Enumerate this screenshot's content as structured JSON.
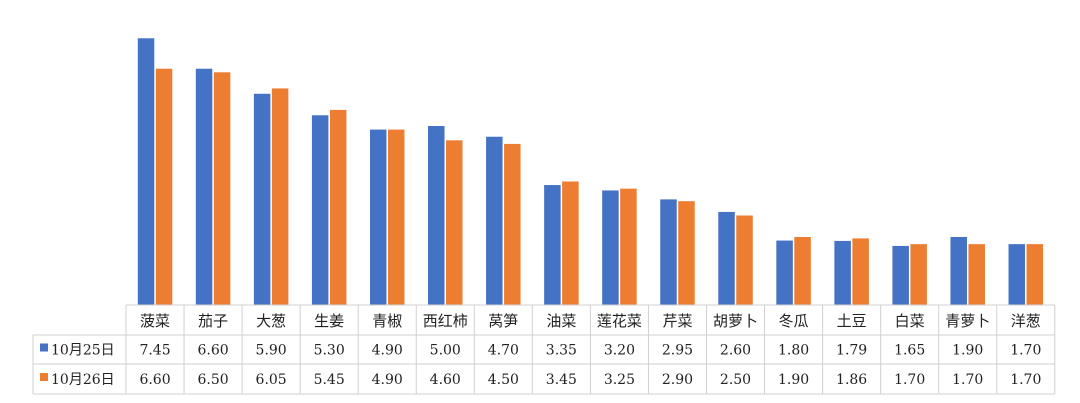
{
  "chart_data": {
    "type": "bar",
    "title": "",
    "xlabel": "",
    "ylabel": "",
    "ylim": [
      0,
      8
    ],
    "grid": false,
    "legend": "table-left",
    "categories": [
      "菠菜",
      "茄子",
      "大葱",
      "生姜",
      "青椒",
      "西红柿",
      "莴笋",
      "油菜",
      "莲花菜",
      "芹菜",
      "胡萝卜",
      "冬瓜",
      "土豆",
      "白菜",
      "青萝卜",
      "洋葱"
    ],
    "series": [
      {
        "name": "10月25日",
        "color": "#4472C4",
        "values": [
          7.45,
          6.6,
          5.9,
          5.3,
          4.9,
          5.0,
          4.7,
          3.35,
          3.2,
          2.95,
          2.6,
          1.8,
          1.79,
          1.65,
          1.9,
          1.7
        ],
        "labels": [
          "7.45",
          "6.60",
          "5.90",
          "5.30",
          "4.90",
          "5.00",
          "4.70",
          "3.35",
          "3.20",
          "2.95",
          "2.60",
          "1.80",
          "1.79",
          "1.65",
          "1.90",
          "1.70"
        ]
      },
      {
        "name": "10月26日",
        "color": "#ED7D31",
        "values": [
          6.6,
          6.5,
          6.05,
          5.45,
          4.9,
          4.6,
          4.5,
          3.45,
          3.25,
          2.9,
          2.5,
          1.9,
          1.86,
          1.7,
          1.7,
          1.7
        ],
        "labels": [
          "6.60",
          "6.50",
          "6.05",
          "5.45",
          "4.90",
          "4.60",
          "4.50",
          "3.45",
          "3.25",
          "2.90",
          "2.50",
          "1.90",
          "1.86",
          "1.70",
          "1.70",
          "1.70"
        ]
      }
    ]
  }
}
